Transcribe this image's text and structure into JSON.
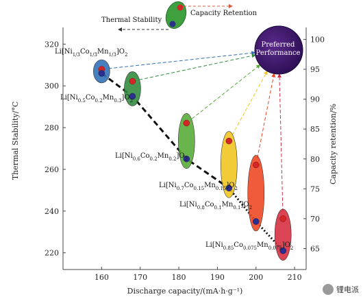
{
  "chart_data": {
    "type": "scatter",
    "xlabel": "Discharge capacity/(mA·h·g⁻¹)",
    "ylabel_left": "Thermal Stability/°C",
    "ylabel_right": "Capacity retention/%",
    "xlim": [
      150,
      213
    ],
    "ylim_left": [
      212,
      328
    ],
    "ylim_right": [
      61.5,
      102
    ],
    "x_ticks": [
      160,
      170,
      180,
      190,
      200,
      210
    ],
    "y_left_ticks": [
      220,
      240,
      260,
      280,
      300,
      320
    ],
    "y_right_ticks": [
      65,
      70,
      75,
      80,
      85,
      90,
      95,
      100
    ],
    "legend": {
      "capacity_retention": "Capacity Retention",
      "thermal_stability": "Thermal Stability"
    },
    "preferred": {
      "line1": "Preferred",
      "line2": "Performance"
    },
    "materials": [
      {
        "pre": "Li[Ni",
        "ni": "1/3",
        "co": "1/3",
        "mn": "1/3",
        "post": "]O",
        "o": "2",
        "color": "#2f6db5",
        "capacity": 160,
        "thermal_stability": 306,
        "capacity_retention": 95
      },
      {
        "pre": "Li[Ni",
        "ni": "0.5",
        "co": "0.2",
        "mn": "0.3",
        "post": "]O",
        "o": "2",
        "color": "#2f8a3c",
        "capacity": 168,
        "thermal_stability": 295,
        "capacity_retention": 93
      },
      {
        "pre": "Li[Ni",
        "ni": "0.6",
        "co": "0.2",
        "mn": "0.2",
        "post": "]O",
        "o": "2",
        "color": "#55aa35",
        "capacity": 182,
        "thermal_stability": 265,
        "capacity_retention": 86
      },
      {
        "pre": "Li[Ni",
        "ni": "0.7",
        "co": "0.15",
        "mn": "0.15",
        "post": "]O",
        "o": "2",
        "color": "#f0c41c",
        "capacity": 193,
        "thermal_stability": 251,
        "capacity_retention": 83
      },
      {
        "pre": "Li[Ni",
        "ni": "0.8",
        "co": "0.1",
        "mn": "0.1",
        "post": "]O",
        "o": "2",
        "color": "#ee4420",
        "capacity": 200,
        "thermal_stability": 235,
        "capacity_retention": 79
      },
      {
        "pre": "Li[Ni",
        "ni": "0.85",
        "co": "0.075",
        "mn": "0.075",
        "post": "]O",
        "o": "2",
        "color": "#d62a3e",
        "capacity": 207,
        "thermal_stability": 221,
        "capacity_retention": 70
      }
    ]
  },
  "watermark": {
    "text": "锂电派"
  }
}
